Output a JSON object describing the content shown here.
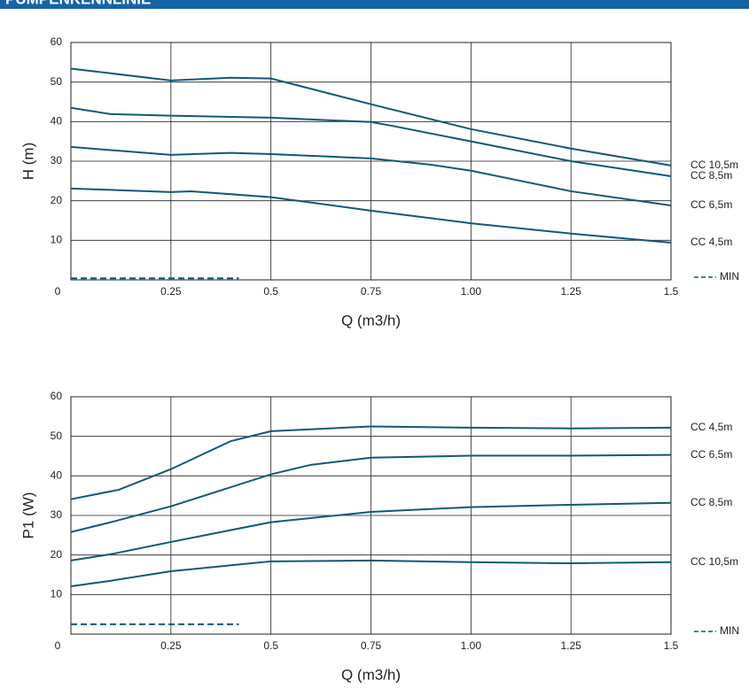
{
  "header": {
    "title": "PUMPENKENNLINIE"
  },
  "chart_data": [
    {
      "type": "line",
      "xlabel": "Q (m3/h)",
      "ylabel": "H (m)",
      "xlim": [
        0,
        1.5
      ],
      "ylim": [
        0,
        60
      ],
      "xticks": [
        0,
        0.25,
        0.5,
        0.75,
        {
          "value": 1,
          "label": "1.00"
        },
        1.25,
        1.5
      ],
      "yticks": [
        10,
        20,
        30,
        40,
        50,
        60
      ],
      "grid": true,
      "series": [
        {
          "name": "CC 10,5m",
          "color": "#0d5a78",
          "x": [
            0,
            0.25,
            0.4,
            0.5,
            0.75,
            1.0,
            1.25,
            1.5
          ],
          "values": [
            53.4,
            50.4,
            51.1,
            50.9,
            44.4,
            38.1,
            33.2,
            28.9
          ]
        },
        {
          "name": "CC 8,5m",
          "color": "#0d5a78",
          "x": [
            0,
            0.1,
            0.25,
            0.5,
            0.75,
            0.8,
            1.0,
            1.25,
            1.5
          ],
          "values": [
            43.5,
            41.9,
            41.5,
            41.0,
            39.9,
            39.0,
            35.0,
            30.0,
            26.2
          ]
        },
        {
          "name": "CC 6,5m",
          "color": "#0d5a78",
          "x": [
            0,
            0.25,
            0.4,
            0.5,
            0.75,
            0.9,
            1.0,
            1.25,
            1.5
          ],
          "values": [
            33.6,
            31.6,
            32.1,
            31.8,
            30.7,
            29.1,
            27.6,
            22.4,
            18.8
          ]
        },
        {
          "name": "CC 4,5m",
          "color": "#0d5a78",
          "x": [
            0,
            0.25,
            0.3,
            0.5,
            0.75,
            1.0,
            1.25,
            1.5
          ],
          "values": [
            23.1,
            22.2,
            22.4,
            20.9,
            17.5,
            14.3,
            11.7,
            9.4
          ]
        },
        {
          "name": "MIN",
          "color": "#0d5a78",
          "line_style": "dashed",
          "x": [
            0,
            0.42
          ],
          "values": [
            0.4,
            0.4
          ]
        }
      ]
    },
    {
      "type": "line",
      "xlabel": "Q (m3/h)",
      "ylabel": "P1 (W)",
      "xlim": [
        0,
        1.5
      ],
      "ylim": [
        0,
        60
      ],
      "xticks": [
        0,
        0.25,
        0.5,
        0.75,
        {
          "value": 1,
          "label": "1.00"
        },
        1.25,
        1.5
      ],
      "yticks": [
        10,
        20,
        30,
        40,
        50,
        60
      ],
      "grid": true,
      "series": [
        {
          "name": "CC 4,5m",
          "color": "#0d5a78",
          "x": [
            0,
            0.12,
            0.25,
            0.4,
            0.5,
            0.75,
            1.0,
            1.25,
            1.5
          ],
          "values": [
            34.1,
            36.5,
            41.7,
            48.8,
            51.3,
            52.5,
            52.2,
            52.0,
            52.2
          ]
        },
        {
          "name": "CC 6,5m",
          "color": "#0d5a78",
          "x": [
            0,
            0.1,
            0.25,
            0.5,
            0.6,
            0.75,
            1.0,
            1.25,
            1.5
          ],
          "values": [
            25.8,
            28.3,
            32.3,
            40.4,
            42.8,
            44.6,
            45.1,
            45.1,
            45.3
          ]
        },
        {
          "name": "CC 8,5m",
          "color": "#0d5a78",
          "x": [
            0,
            0.1,
            0.25,
            0.35,
            0.5,
            0.75,
            1.0,
            1.25,
            1.5
          ],
          "values": [
            18.6,
            20.2,
            23.3,
            25.3,
            28.3,
            30.9,
            32.1,
            32.7,
            33.2
          ]
        },
        {
          "name": "CC 10,5m",
          "color": "#0d5a78",
          "x": [
            0,
            0.1,
            0.25,
            0.5,
            0.75,
            1.0,
            1.25,
            1.5
          ],
          "values": [
            12.1,
            13.5,
            15.9,
            18.4,
            18.6,
            18.2,
            17.9,
            18.2
          ]
        },
        {
          "name": "MIN",
          "color": "#0d5a78",
          "line_style": "dashed",
          "x": [
            0,
            0.42
          ],
          "values": [
            2.5,
            2.5
          ]
        }
      ]
    }
  ]
}
